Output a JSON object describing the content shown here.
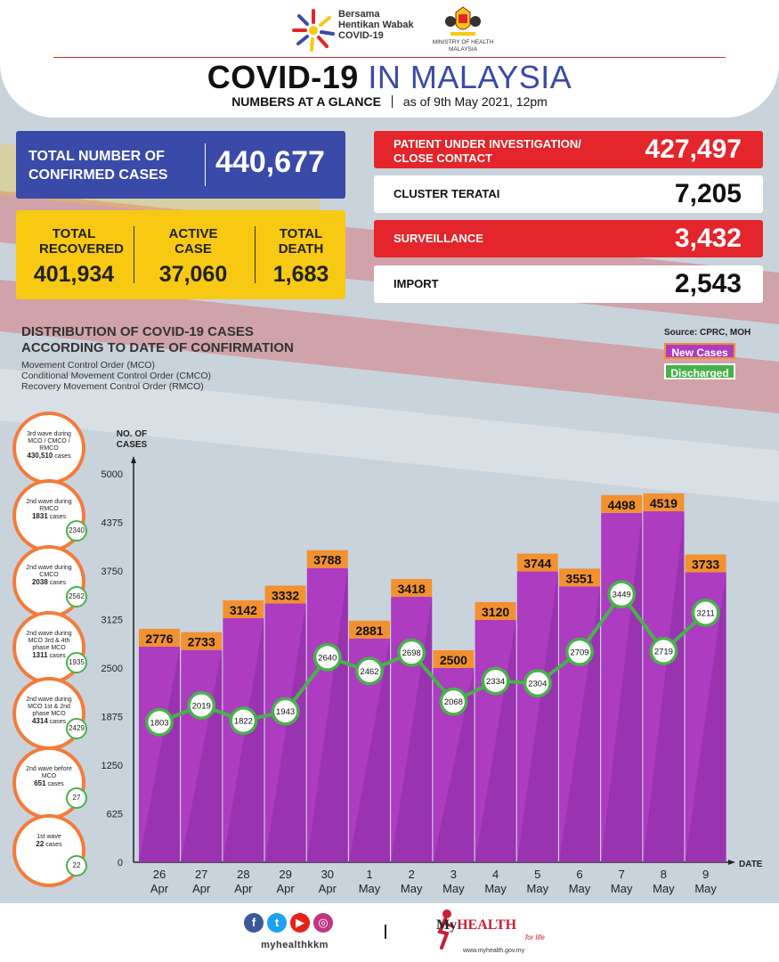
{
  "header": {
    "campaign_logo_text": "Bersama Hentikan Wabak COVID-19",
    "ministry_text": "MINISTRY OF HEALTH MALAYSIA",
    "title_part1": "COVID-19",
    "title_part2": "IN MALAYSIA",
    "subtitle_label": "NUMBERS AT A GLANCE",
    "subtitle_date": "as of 9th May 2021, 12pm"
  },
  "stats": {
    "total_label": "TOTAL NUMBER OF CONFIRMED CASES",
    "total_value": "440,677",
    "recovered_label": "TOTAL RECOVERED",
    "recovered_value": "401,934",
    "active_label": "ACTIVE CASE",
    "active_value": "37,060",
    "death_label": "TOTAL DEATH",
    "death_value": "1,683",
    "pui_label": "PATIENT UNDER INVESTIGATION/ CLOSE CONTACT",
    "pui_value": "427,497",
    "cluster_label": "CLUSTER TERATAI",
    "cluster_value": "7,205",
    "surveillance_label": "SURVEILLANCE",
    "surveillance_value": "3,432",
    "import_label": "IMPORT",
    "import_value": "2,543"
  },
  "distribution": {
    "title_line1": "DISTRIBUTION OF COVID-19 CASES",
    "title_line2": "ACCORDING TO DATE OF CONFIRMATION",
    "note1": "Movement Control Order (MCO)",
    "note2": "Conditional Movement Control Order (CMCO)",
    "note3": "Recovery Movement Control Order (RMCO)",
    "source": "Source: CPRC, MOH",
    "legend_new": "New Cases",
    "legend_discharged": "Discharged"
  },
  "waves": [
    {
      "text": "3rd wave during MCO / CMCO / RMCO",
      "cases": "430,510",
      "unit": "cases",
      "discharged": ""
    },
    {
      "text": "2nd wave during RMCO",
      "cases": "1831",
      "unit": "cases",
      "discharged": "2340"
    },
    {
      "text": "2nd wave during CMCO",
      "cases": "2038",
      "unit": "cases",
      "discharged": "2562"
    },
    {
      "text": "2nd wave during MCO 3rd & 4th phase MCO",
      "cases": "1311",
      "unit": "cases",
      "discharged": "1935"
    },
    {
      "text": "2nd wave during MCO 1st & 2nd phase MCO",
      "cases": "4314",
      "unit": "cases",
      "discharged": "2429"
    },
    {
      "text": "2nd wave before MCO",
      "cases": "651",
      "unit": "cases",
      "discharged": "27"
    },
    {
      "text": "1st wave",
      "cases": "22",
      "unit": "cases",
      "discharged": "22"
    }
  ],
  "chart_data": {
    "type": "bar",
    "categories": [
      "26 Apr",
      "27 Apr",
      "28 Apr",
      "29 Apr",
      "30 Apr",
      "1 May",
      "2 May",
      "3 May",
      "4 May",
      "5 May",
      "6 May",
      "7 May",
      "8 May",
      "9 May"
    ],
    "category_day": [
      "26",
      "27",
      "28",
      "29",
      "30",
      "1",
      "2",
      "3",
      "4",
      "5",
      "6",
      "7",
      "8",
      "9"
    ],
    "category_month": [
      "Apr",
      "Apr",
      "Apr",
      "Apr",
      "Apr",
      "May",
      "May",
      "May",
      "May",
      "May",
      "May",
      "May",
      "May",
      "May"
    ],
    "series": [
      {
        "name": "New Cases",
        "type": "bar",
        "color": "#ad3cc1",
        "values": [
          2776,
          2733,
          3142,
          3332,
          3788,
          2881,
          3418,
          2500,
          3120,
          3744,
          3551,
          4498,
          4519,
          3733
        ]
      },
      {
        "name": "Discharged",
        "type": "line",
        "color": "#47b24a",
        "values": [
          1803,
          2019,
          1822,
          1943,
          2640,
          2462,
          2698,
          2068,
          2334,
          2304,
          2709,
          3449,
          2719,
          3211
        ]
      }
    ],
    "ylabel": "NO. OF CASES",
    "xlabel": "DATE",
    "ylim": [
      0,
      5000
    ],
    "yticks": [
      0,
      625,
      1250,
      1875,
      2500,
      3125,
      3750,
      4375,
      5000
    ],
    "bar_label_color": "#f29130",
    "grid": false
  },
  "footer": {
    "handle": "myhealthkkm",
    "brand_my": "My",
    "brand_health": "HEALTH",
    "tagline": "for life",
    "website": "www.myhealth.gov.my"
  }
}
